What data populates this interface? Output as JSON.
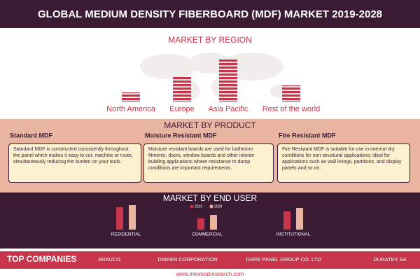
{
  "header": {
    "title": "GLOBAL MEDIUM DENSITY FIBERBOARD (MDF) MARKET 2019-2028"
  },
  "region": {
    "title": "MARKET BY REGION",
    "color": "#c8354a",
    "categories": [
      "North America",
      "Europe",
      "Asia Pacific",
      "Rest of the world"
    ],
    "values": [
      14,
      36,
      62,
      24
    ]
  },
  "product": {
    "title": "MARKET BY PRODUCT",
    "items": [
      {
        "name": "Standard MDF",
        "text": "Standard MDF is constructed consistently throughout the panel which makes it easy to cut, machine or route, simultaneously reducing the burden on your tools."
      },
      {
        "name": "Moisture Resistant MDF",
        "text": "Moisture resistant boards are used for bathroom fitments, doors, window boards and other interior building applications where resistance to damp conditions are important requirements."
      },
      {
        "name": "Fire Resistant MDF",
        "text": "Fire Resistant MDF is suitable for use in internal dry conditions for non-structural applications; ideal for applications such as wall linings, partitions, and display panels and so on."
      }
    ]
  },
  "end_user": {
    "title": "MARKET BY END USER",
    "categories": [
      "RESIDENTIAL",
      "COMMERCIAL",
      "INSTITUTIONAL"
    ],
    "series": [
      {
        "name": "2019",
        "color": "#c8354a",
        "values": [
          32,
          16,
          26
        ]
      },
      {
        "name": "2028",
        "color": "#ebb49e",
        "values": [
          35,
          21,
          31
        ]
      }
    ]
  },
  "companies": {
    "title": "TOP COMPANIES",
    "items": [
      "ARAUCO",
      "DAIKEN CORPORATION",
      "DARE PANEL GROUP CO. LTD",
      "DURATEX SA"
    ]
  },
  "footer": {
    "url": "www.inkwoodresearch.com"
  }
}
